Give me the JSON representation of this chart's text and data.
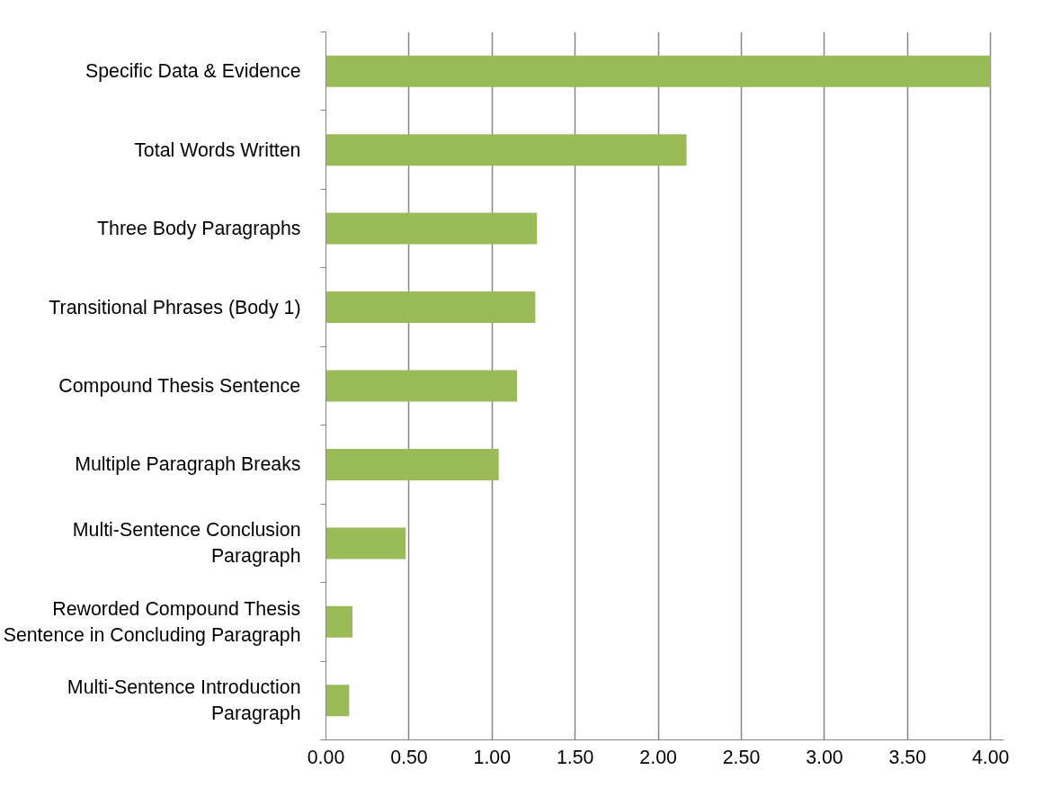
{
  "chart_data": {
    "type": "bar",
    "orientation": "horizontal",
    "categories": [
      "Specific Data & Evidence",
      "Total Words Written",
      "Three Body Paragraphs",
      "Transitional Phrases (Body 1)",
      "Compound Thesis Sentence",
      "Multiple Paragraph Breaks",
      "Multi-Sentence Conclusion Paragraph",
      "Reworded Compound Thesis Sentence in Concluding Paragraph",
      "Multi-Sentence Introduction Paragraph"
    ],
    "values": [
      4.0,
      2.17,
      1.27,
      1.26,
      1.15,
      1.04,
      0.48,
      0.16,
      0.14
    ],
    "color": "#9bbb59",
    "xlim": [
      0,
      4
    ],
    "xticks": [
      {
        "value": 0,
        "label": "0.00"
      },
      {
        "value": 0.5,
        "label": "0.50"
      },
      {
        "value": 1,
        "label": "1.00"
      },
      {
        "value": 1.5,
        "label": "1.50"
      },
      {
        "value": 2,
        "label": "2.00"
      },
      {
        "value": 2.5,
        "label": "2.50"
      },
      {
        "value": 3,
        "label": "3.00"
      },
      {
        "value": 3.5,
        "label": "3.50"
      },
      {
        "value": 4,
        "label": "4.00"
      }
    ],
    "grid": "x"
  }
}
